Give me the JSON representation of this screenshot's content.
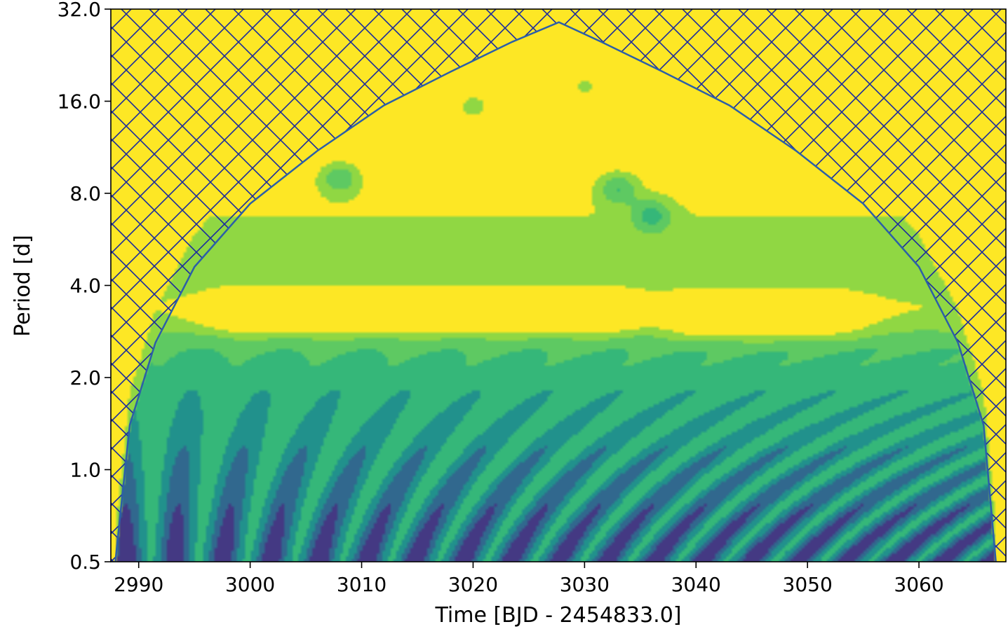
{
  "chart_data": {
    "type": "heatmap",
    "subtype": "wavelet-power-spectrum",
    "title": "",
    "xlabel": "Time [BJD - 2454833.0]",
    "ylabel": "Period [d]",
    "xlim": [
      2987.5,
      3067.8
    ],
    "ylim": [
      0.5,
      32.0
    ],
    "yscale": "log2",
    "xticks": [
      2990,
      3000,
      3010,
      3020,
      3030,
      3040,
      3050,
      3060
    ],
    "yticks": [
      0.5,
      1.0,
      2.0,
      4.0,
      8.0,
      16.0,
      32.0
    ],
    "xtick_labels": [
      "2990",
      "3000",
      "3010",
      "3020",
      "3030",
      "3040",
      "3050",
      "3060"
    ],
    "ytick_labels": [
      "0.5",
      "1.0",
      "2.0",
      "4.0",
      "8.0",
      "16.0",
      "32.0"
    ],
    "grid": false,
    "colormap": "viridis",
    "levels": 7,
    "cone_of_influence": {
      "hatch": "crosshatch",
      "hatch_color": "#1a2a9e",
      "line_color": "#2c5fa8",
      "points": [
        {
          "x": 2987.9,
          "y": 0.5
        },
        {
          "x": 2989.2,
          "y": 1.4
        },
        {
          "x": 2991.5,
          "y": 2.6
        },
        {
          "x": 2995.0,
          "y": 4.6
        },
        {
          "x": 3000.0,
          "y": 7.4
        },
        {
          "x": 3006.0,
          "y": 11.0
        },
        {
          "x": 3012.0,
          "y": 15.5
        },
        {
          "x": 3018.0,
          "y": 20.0
        },
        {
          "x": 3023.5,
          "y": 25.0
        },
        {
          "x": 3027.7,
          "y": 29.0
        },
        {
          "x": 3031.5,
          "y": 25.0
        },
        {
          "x": 3037.0,
          "y": 20.0
        },
        {
          "x": 3043.0,
          "y": 15.5
        },
        {
          "x": 3049.0,
          "y": 11.0
        },
        {
          "x": 3055.0,
          "y": 7.4
        },
        {
          "x": 3060.0,
          "y": 4.6
        },
        {
          "x": 3063.5,
          "y": 2.6
        },
        {
          "x": 3065.8,
          "y": 1.4
        },
        {
          "x": 3066.9,
          "y": 0.5
        }
      ]
    },
    "features": [
      {
        "kind": "ridge",
        "label": "high",
        "x_range": [
          3000,
          3031
        ],
        "period": 3.3
      },
      {
        "kind": "ridge",
        "label": "high",
        "x_range": [
          3041,
          3051
        ],
        "period": 3.2
      },
      {
        "kind": "peak",
        "label": "low",
        "x": 3033,
        "period": 8.3
      },
      {
        "kind": "peak",
        "label": "low",
        "x": 3036,
        "period": 6.8
      },
      {
        "kind": "peak",
        "label": "low",
        "x": 3008,
        "period": 9.0
      },
      {
        "kind": "peak",
        "label": "low",
        "x": 3020,
        "period": 15.5
      },
      {
        "kind": "peak",
        "label": "low",
        "x": 3030,
        "period": 18.0
      }
    ],
    "colors": {
      "level_0": "#440154",
      "level_1": "#443983",
      "level_2": "#31688e",
      "level_3": "#21918c",
      "level_4": "#35b779",
      "level_5": "#5ec962",
      "level_6": "#90d743",
      "level_7": "#fde725"
    }
  }
}
